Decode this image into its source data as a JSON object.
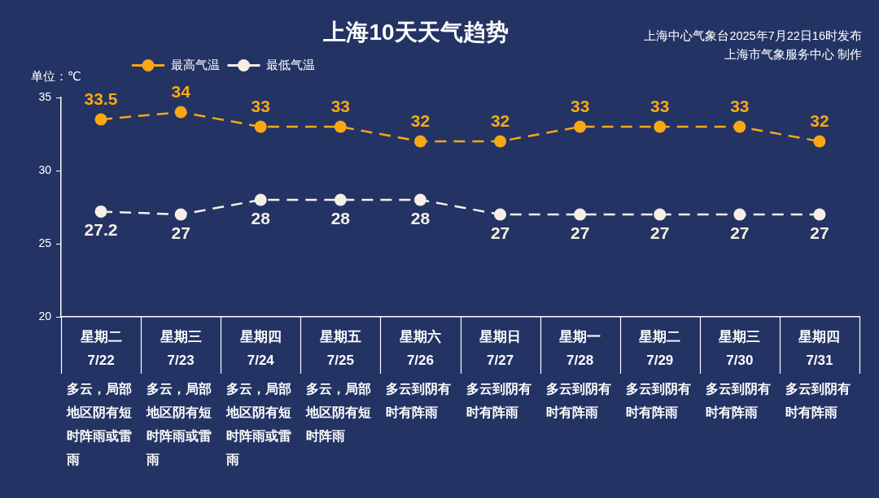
{
  "chart_data": {
    "type": "line",
    "title": "上海10天天气趋势",
    "ylabel": "单位：℃",
    "annotations": [
      "上海中心气象台2025年7月22日16时发布",
      "上海市气象服务中心 制作",
      "多云，局部地区阴有短时阵雨或雷雨",
      "多云，局部地区阴有短时阵雨或雷雨",
      "多云，局部地区阴有短时阵雨或雷雨",
      "多云，局部地区阴有短时阵雨",
      "多云到阴有时有阵雨",
      "多云到阴有时有阵雨",
      "多云到阴有时有阵雨",
      "多云到阴有时有阵雨",
      "多云到阴有时有阵雨",
      "多云到阴有时有阵雨"
    ],
    "categories": [
      "星期二\n7/22",
      "星期三\n7/23",
      "星期四\n7/24",
      "星期五\n7/25",
      "星期六\n7/26",
      "星期日\n7/27",
      "星期一\n7/28",
      "星期二\n7/29",
      "星期三\n7/30",
      "星期四\n7/31"
    ],
    "series": [
      {
        "name": "最高气温",
        "color": "#f9a814",
        "values": [
          33.5,
          34,
          33,
          33,
          32,
          32,
          33,
          33,
          33,
          32
        ]
      },
      {
        "name": "最低气温",
        "color": "#f7efe6",
        "values": [
          27.2,
          27,
          28,
          28,
          28,
          27,
          27,
          27,
          27,
          27
        ]
      }
    ],
    "ylim": [
      20,
      35
    ],
    "yticks": [
      20,
      25,
      30,
      35
    ],
    "legend": "top left",
    "marker": "circle",
    "line_style": "dashed",
    "data_labels": true
  }
}
